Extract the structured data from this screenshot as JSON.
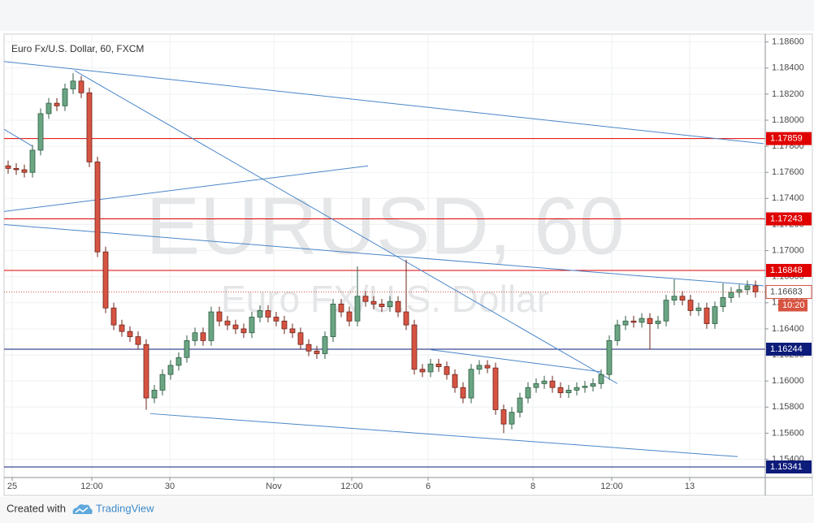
{
  "chart_data": {
    "type": "candlestick",
    "title": "Euro Fx/U.S. Dollar, 60, FXCM",
    "watermark": "EURUSD, 60",
    "watermark_subtitle": "Euro FX/U.S. Dollar",
    "up_color": "#6ba583",
    "down_color": "#d75442",
    "candles": [
      [
        1.1765,
        1.1769,
        1.1759,
        1.1763
      ],
      [
        1.1763,
        1.1767,
        1.1758,
        1.1762
      ],
      [
        1.1762,
        1.1766,
        1.1756,
        1.176
      ],
      [
        1.176,
        1.1781,
        1.1756,
        1.1777
      ],
      [
        1.1777,
        1.1809,
        1.1773,
        1.1805
      ],
      [
        1.1805,
        1.1817,
        1.1801,
        1.1813
      ],
      [
        1.1813,
        1.1817,
        1.1807,
        1.1811
      ],
      [
        1.1811,
        1.1828,
        1.1807,
        1.1824
      ],
      [
        1.1824,
        1.1836,
        1.182,
        1.183
      ],
      [
        1.183,
        1.1834,
        1.1817,
        1.1821
      ],
      [
        1.1821,
        1.1825,
        1.1764,
        1.1768
      ],
      [
        1.1768,
        1.1772,
        1.1695,
        1.1699
      ],
      [
        1.1699,
        1.1703,
        1.1652,
        1.1656
      ],
      [
        1.1656,
        1.166,
        1.1639,
        1.1643
      ],
      [
        1.1643,
        1.1647,
        1.1634,
        1.1638
      ],
      [
        1.1638,
        1.1642,
        1.163,
        1.1634
      ],
      [
        1.1634,
        1.1638,
        1.1624,
        1.1628
      ],
      [
        1.1628,
        1.1632,
        1.1578,
        1.1587
      ],
      [
        1.1587,
        1.1597,
        1.1583,
        1.1593
      ],
      [
        1.1593,
        1.1609,
        1.1589,
        1.1605
      ],
      [
        1.1605,
        1.1616,
        1.1601,
        1.1612
      ],
      [
        1.1612,
        1.1622,
        1.1608,
        1.1618
      ],
      [
        1.1618,
        1.1635,
        1.1614,
        1.1631
      ],
      [
        1.1631,
        1.1641,
        1.1627,
        1.1637
      ],
      [
        1.1637,
        1.1641,
        1.1627,
        1.1631
      ],
      [
        1.1631,
        1.1657,
        1.1627,
        1.1653
      ],
      [
        1.1653,
        1.1657,
        1.1642,
        1.1646
      ],
      [
        1.1646,
        1.165,
        1.1639,
        1.1643
      ],
      [
        1.1643,
        1.1647,
        1.1636,
        1.164
      ],
      [
        1.164,
        1.1644,
        1.1633,
        1.1637
      ],
      [
        1.1637,
        1.1653,
        1.1633,
        1.1649
      ],
      [
        1.1649,
        1.1658,
        1.1645,
        1.1654
      ],
      [
        1.1654,
        1.1658,
        1.1645,
        1.1649
      ],
      [
        1.1649,
        1.1653,
        1.1642,
        1.1646
      ],
      [
        1.1646,
        1.165,
        1.1636,
        1.164
      ],
      [
        1.164,
        1.1644,
        1.1633,
        1.1637
      ],
      [
        1.1637,
        1.1641,
        1.1624,
        1.1628
      ],
      [
        1.1628,
        1.1632,
        1.1619,
        1.1623
      ],
      [
        1.1623,
        1.1627,
        1.1617,
        1.1621
      ],
      [
        1.1621,
        1.1638,
        1.1617,
        1.1634
      ],
      [
        1.1634,
        1.1663,
        1.163,
        1.1659
      ],
      [
        1.1659,
        1.1663,
        1.1649,
        1.1653
      ],
      [
        1.1653,
        1.1657,
        1.1642,
        1.1646
      ],
      [
        1.1646,
        1.1688,
        1.1642,
        1.1665
      ],
      [
        1.1665,
        1.1669,
        1.1657,
        1.1661
      ],
      [
        1.1661,
        1.1665,
        1.1655,
        1.1659
      ],
      [
        1.1659,
        1.1663,
        1.1653,
        1.1657
      ],
      [
        1.1657,
        1.1665,
        1.1653,
        1.1661
      ],
      [
        1.1661,
        1.1665,
        1.1649,
        1.1653
      ],
      [
        1.1653,
        1.1693,
        1.1639,
        1.1643
      ],
      [
        1.1643,
        1.1647,
        1.1605,
        1.1609
      ],
      [
        1.1609,
        1.1613,
        1.1603,
        1.1607
      ],
      [
        1.1607,
        1.1617,
        1.1603,
        1.1613
      ],
      [
        1.1613,
        1.1617,
        1.1607,
        1.1611
      ],
      [
        1.1611,
        1.1615,
        1.1601,
        1.1605
      ],
      [
        1.1605,
        1.1609,
        1.1591,
        1.1595
      ],
      [
        1.1595,
        1.1599,
        1.1583,
        1.1587
      ],
      [
        1.1587,
        1.1613,
        1.1583,
        1.1609
      ],
      [
        1.1609,
        1.1616,
        1.1605,
        1.1612
      ],
      [
        1.1612,
        1.1616,
        1.1606,
        1.161
      ],
      [
        1.161,
        1.1614,
        1.1574,
        1.1578
      ],
      [
        1.1578,
        1.1582,
        1.156,
        1.1567
      ],
      [
        1.1567,
        1.158,
        1.1563,
        1.1576
      ],
      [
        1.1576,
        1.1591,
        1.1572,
        1.1587
      ],
      [
        1.1587,
        1.1599,
        1.1583,
        1.1595
      ],
      [
        1.1595,
        1.1602,
        1.1591,
        1.1598
      ],
      [
        1.1598,
        1.1604,
        1.1594,
        1.16
      ],
      [
        1.16,
        1.1604,
        1.1591,
        1.1595
      ],
      [
        1.1595,
        1.1599,
        1.1587,
        1.1591
      ],
      [
        1.1591,
        1.1597,
        1.1587,
        1.1593
      ],
      [
        1.1593,
        1.1599,
        1.1589,
        1.1595
      ],
      [
        1.1595,
        1.16,
        1.1591,
        1.1596
      ],
      [
        1.1596,
        1.1602,
        1.1592,
        1.1598
      ],
      [
        1.1598,
        1.1609,
        1.1594,
        1.1605
      ],
      [
        1.1605,
        1.1635,
        1.1601,
        1.1631
      ],
      [
        1.1631,
        1.1647,
        1.1627,
        1.1643
      ],
      [
        1.1643,
        1.165,
        1.1639,
        1.1646
      ],
      [
        1.1646,
        1.165,
        1.1641,
        1.1645
      ],
      [
        1.1645,
        1.1652,
        1.1641,
        1.1648
      ],
      [
        1.1648,
        1.1652,
        1.1624,
        1.1644
      ],
      [
        1.1644,
        1.165,
        1.164,
        1.1646
      ],
      [
        1.1646,
        1.1666,
        1.1642,
        1.1662
      ],
      [
        1.1662,
        1.1678,
        1.1658,
        1.1665
      ],
      [
        1.1665,
        1.1669,
        1.1658,
        1.1662
      ],
      [
        1.1662,
        1.1666,
        1.165,
        1.1654
      ],
      [
        1.1654,
        1.166,
        1.165,
        1.1656
      ],
      [
        1.1656,
        1.166,
        1.164,
        1.1644
      ],
      [
        1.1644,
        1.1661,
        1.164,
        1.1657
      ],
      [
        1.1657,
        1.1675,
        1.1653,
        1.1664
      ],
      [
        1.1664,
        1.1672,
        1.166,
        1.1668
      ],
      [
        1.1668,
        1.1674,
        1.1664,
        1.167
      ],
      [
        1.167,
        1.1677,
        1.1666,
        1.1673
      ],
      [
        1.1673,
        1.1677,
        1.1664,
        1.16683
      ]
    ],
    "xlim": [
      -0.5,
      93.2
    ],
    "xticks": [
      {
        "value": 0.5,
        "label": "25"
      },
      {
        "value": 10.3,
        "label": "12:00"
      },
      {
        "value": 19.9,
        "label": "30"
      },
      {
        "value": 32.7,
        "label": "Nov"
      },
      {
        "value": 42.3,
        "label": "12:00"
      },
      {
        "value": 51.7,
        "label": "6"
      },
      {
        "value": 64.6,
        "label": "8"
      },
      {
        "value": 74.3,
        "label": "12:00"
      },
      {
        "value": 83.9,
        "label": "13"
      }
    ],
    "ylim": [
      1.1526,
      1.1866
    ],
    "yticks": [
      {
        "value": 1.186,
        "label": "1.18600"
      },
      {
        "value": 1.184,
        "label": "1.18400"
      },
      {
        "value": 1.182,
        "label": "1.18200"
      },
      {
        "value": 1.18,
        "label": "1.18000"
      },
      {
        "value": 1.178,
        "label": "1.17800"
      },
      {
        "value": 1.176,
        "label": "1.17600"
      },
      {
        "value": 1.174,
        "label": "1.17400"
      },
      {
        "value": 1.172,
        "label": "1.17200"
      },
      {
        "value": 1.17,
        "label": "1.17000"
      },
      {
        "value": 1.168,
        "label": "1.16800"
      },
      {
        "value": 1.166,
        "label": "1.16600"
      },
      {
        "value": 1.164,
        "label": "1.16400"
      },
      {
        "value": 1.162,
        "label": "1.16200"
      },
      {
        "value": 1.16,
        "label": "1.16000"
      },
      {
        "value": 1.158,
        "label": "1.15800"
      },
      {
        "value": 1.156,
        "label": "1.15600"
      },
      {
        "value": 1.154,
        "label": "1.15400"
      }
    ],
    "grid": true,
    "levels": [
      {
        "value": 1.17859,
        "color": "#e00000"
      },
      {
        "value": 1.17243,
        "color": "#e00000"
      },
      {
        "value": 1.16848,
        "color": "#e00000"
      },
      {
        "value": 1.16244,
        "color": "#0d1b7a"
      },
      {
        "value": 1.15341,
        "color": "#0d1b7a"
      }
    ],
    "current_price": {
      "value": 1.16683,
      "countdown": "10:20",
      "color": "#d75442"
    },
    "trendline_color": "#4a86c8",
    "trendlines": [
      {
        "x": [
          -0.5,
          93
        ],
        "y": [
          1.1845,
          1.1782
        ]
      },
      {
        "x": [
          8.2,
          75
        ],
        "y": [
          1.1838,
          1.1598
        ]
      },
      {
        "x": [
          -0.5,
          3
        ],
        "y": [
          1.1793,
          1.178
        ]
      },
      {
        "x": [
          -0.5,
          44.3
        ],
        "y": [
          1.173,
          1.1765
        ]
      },
      {
        "x": [
          -0.5,
          93
        ],
        "y": [
          1.172,
          1.1673
        ]
      },
      {
        "x": [
          52,
          73
        ],
        "y": [
          1.1624,
          1.1607
        ]
      },
      {
        "x": [
          17.5,
          89.8
        ],
        "y": [
          1.1575,
          1.1542
        ]
      }
    ]
  },
  "footer": {
    "text": "Created with",
    "brand": "TradingView"
  }
}
